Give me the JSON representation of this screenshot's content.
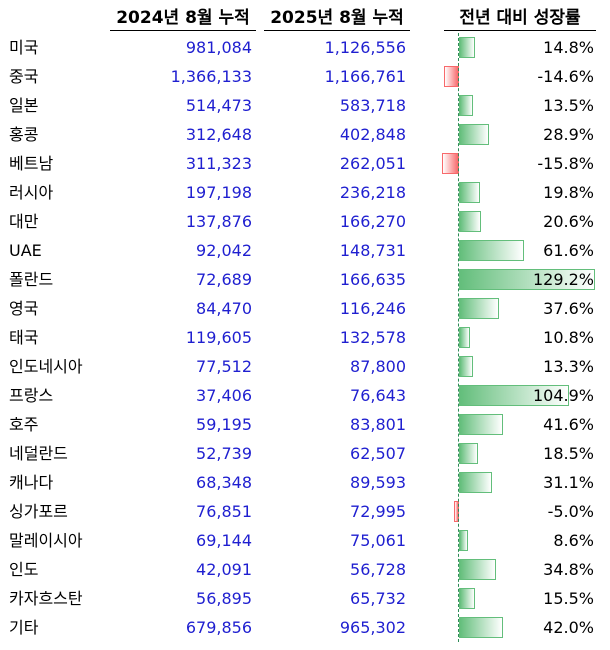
{
  "chart_data": {
    "type": "table",
    "columns": [
      "",
      "2024년 8월 누적",
      "2025년 8월 누적",
      "전년 대비 성장률"
    ],
    "growth_axis_max": 129.2,
    "rows": [
      {
        "country": "미국",
        "v2024": "981,084",
        "v2025": "1,126,556",
        "growth": 14.8,
        "growth_label": "14.8%"
      },
      {
        "country": "중국",
        "v2024": "1,366,133",
        "v2025": "1,166,761",
        "growth": -14.6,
        "growth_label": "-14.6%"
      },
      {
        "country": "일본",
        "v2024": "514,473",
        "v2025": "583,718",
        "growth": 13.5,
        "growth_label": "13.5%"
      },
      {
        "country": "홍콩",
        "v2024": "312,648",
        "v2025": "402,848",
        "growth": 28.9,
        "growth_label": "28.9%"
      },
      {
        "country": "베트남",
        "v2024": "311,323",
        "v2025": "262,051",
        "growth": -15.8,
        "growth_label": "-15.8%"
      },
      {
        "country": "러시아",
        "v2024": "197,198",
        "v2025": "236,218",
        "growth": 19.8,
        "growth_label": "19.8%"
      },
      {
        "country": "대만",
        "v2024": "137,876",
        "v2025": "166,270",
        "growth": 20.6,
        "growth_label": "20.6%"
      },
      {
        "country": "UAE",
        "v2024": "92,042",
        "v2025": "148,731",
        "growth": 61.6,
        "growth_label": "61.6%"
      },
      {
        "country": "폴란드",
        "v2024": "72,689",
        "v2025": "166,635",
        "growth": 129.2,
        "growth_label": "129.2%"
      },
      {
        "country": "영국",
        "v2024": "84,470",
        "v2025": "116,246",
        "growth": 37.6,
        "growth_label": "37.6%"
      },
      {
        "country": "태국",
        "v2024": "119,605",
        "v2025": "132,578",
        "growth": 10.8,
        "growth_label": "10.8%"
      },
      {
        "country": "인도네시아",
        "v2024": "77,512",
        "v2025": "87,800",
        "growth": 13.3,
        "growth_label": "13.3%"
      },
      {
        "country": "프랑스",
        "v2024": "37,406",
        "v2025": "76,643",
        "growth": 104.9,
        "growth_label": "104.9%"
      },
      {
        "country": "호주",
        "v2024": "59,195",
        "v2025": "83,801",
        "growth": 41.6,
        "growth_label": "41.6%"
      },
      {
        "country": "네덜란드",
        "v2024": "52,739",
        "v2025": "62,507",
        "growth": 18.5,
        "growth_label": "18.5%"
      },
      {
        "country": "캐나다",
        "v2024": "68,348",
        "v2025": "89,593",
        "growth": 31.1,
        "growth_label": "31.1%"
      },
      {
        "country": "싱가포르",
        "v2024": "76,851",
        "v2025": "72,995",
        "growth": -5.0,
        "growth_label": "-5.0%"
      },
      {
        "country": "말레이시아",
        "v2024": "69,144",
        "v2025": "75,061",
        "growth": 8.6,
        "growth_label": "8.6%"
      },
      {
        "country": "인도",
        "v2024": "42,091",
        "v2025": "56,728",
        "growth": 34.8,
        "growth_label": "34.8%"
      },
      {
        "country": "카자흐스탄",
        "v2024": "56,895",
        "v2025": "65,732",
        "growth": 15.5,
        "growth_label": "15.5%"
      },
      {
        "country": "기타",
        "v2024": "679,856",
        "v2025": "965,302",
        "growth": 42.0,
        "growth_label": "42.0%"
      }
    ]
  },
  "colors": {
    "value_text": "#1f1fd0",
    "positive_bar": "#63be7b",
    "negative_bar": "#f8696b",
    "axis": "#2e8b57"
  }
}
